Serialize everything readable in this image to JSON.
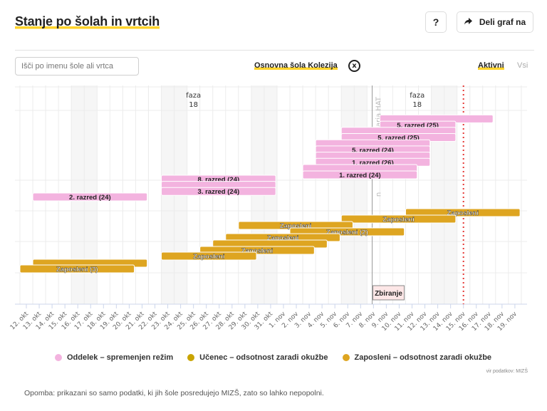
{
  "header": {
    "title": "Stanje po šolah in vrtcih",
    "help_label": "?",
    "share_label": "Deli graf na",
    "share_icon": "share-arrow-icon"
  },
  "filters": {
    "search_placeholder": "Išči po imenu šole ali vrtca",
    "selected_school": "Osnovna šola Kolezija",
    "clear_icon": "close-circle-icon",
    "clear_label": "x",
    "toggle_active": "Aktivni",
    "toggle_all": "Vsi"
  },
  "colors": {
    "oddelek": "#f3b3df",
    "ucenec": "#c9a400",
    "zaposleni": "#dea521",
    "accent": "#ffd32a",
    "today_line": "#e53935"
  },
  "chart_data": {
    "type": "gantt",
    "x_start": "12. okt",
    "x_labels": [
      "12. okt",
      "13. okt",
      "14. okt",
      "15. okt",
      "16. okt",
      "17. okt",
      "18. okt",
      "19. okt",
      "20. okt",
      "21. okt",
      "22. okt",
      "23. okt",
      "24. okt",
      "25. okt",
      "26. okt",
      "27. okt",
      "28. okt",
      "29. okt",
      "30. okt",
      "31. okt",
      "1. nov",
      "2. nov",
      "3. nov",
      "4. nov",
      "5. nov",
      "6. nov",
      "7. nov",
      "8. nov",
      "9. nov",
      "10. nov",
      "11. nov",
      "12. nov",
      "13. nov",
      "14. nov",
      "15. nov",
      "16. nov",
      "17. nov",
      "18. nov",
      "19. nov"
    ],
    "weekend_day_indices": [
      4,
      5,
      11,
      12,
      18,
      19,
      25,
      26,
      32,
      33
    ],
    "annotations": [
      {
        "type": "label",
        "text_line1": "faza",
        "text_line2": "18",
        "day": 13
      },
      {
        "type": "label",
        "text_line1": "faza",
        "text_line2": "18",
        "day": 30.4
      },
      {
        "type": "vline",
        "text": "aria HAT",
        "text_visible_fragment": "n",
        "day": 26.9,
        "style": "solid-gray"
      },
      {
        "type": "vline",
        "day": 34,
        "style": "dotted-red"
      },
      {
        "type": "flag",
        "text": "Zbiranje",
        "day": 26.9
      }
    ],
    "legend": [
      {
        "key": "oddelek",
        "label": "Oddelek – spremenjen režim"
      },
      {
        "key": "ucenec",
        "label": "Učenec – odsotnost zaradi okužbe"
      },
      {
        "key": "zaposleni",
        "label": "Zaposleni – odsotnost zaradi okužbe"
      }
    ],
    "bars": [
      {
        "cat": "oddelek",
        "start": 10.5,
        "end": 19.4,
        "row": 0,
        "label": "8. razred (24)"
      },
      {
        "cat": "oddelek",
        "start": 10.5,
        "end": 19.4,
        "row": 1,
        "label": ""
      },
      {
        "cat": "oddelek",
        "start": 10.5,
        "end": 19.4,
        "row": 2,
        "label": "3. razred (24)"
      },
      {
        "cat": "oddelek",
        "start": 0.5,
        "end": 9.4,
        "row": 3,
        "label": "2. razred (24)"
      },
      {
        "cat": "oddelek",
        "start": 27.5,
        "end": 36.3,
        "row": -8,
        "label": ""
      },
      {
        "cat": "oddelek",
        "start": 27.5,
        "end": 33.4,
        "row": -7,
        "label": "5. razred (25)"
      },
      {
        "cat": "oddelek",
        "start": 24.5,
        "end": 33.4,
        "row": -6,
        "label": ""
      },
      {
        "cat": "oddelek",
        "start": 24.5,
        "end": 33.4,
        "row": -5,
        "label": "5. razred (25)"
      },
      {
        "cat": "oddelek",
        "start": 22.5,
        "end": 31.4,
        "row": -4,
        "label": ""
      },
      {
        "cat": "oddelek",
        "start": 22.5,
        "end": 31.4,
        "row": -3,
        "label": "5. razred (24)"
      },
      {
        "cat": "oddelek",
        "start": 22.5,
        "end": 31.4,
        "row": -2,
        "label": ""
      },
      {
        "cat": "oddelek",
        "start": 22.5,
        "end": 31.4,
        "row": -1,
        "label": "1. razred (26)"
      },
      {
        "cat": "oddelek",
        "start": 21.5,
        "end": 30.4,
        "row": 0,
        "label": ""
      },
      {
        "cat": "oddelek",
        "start": 21.5,
        "end": 30.4,
        "row": 1,
        "label": "1. razred (24)"
      },
      {
        "cat": "zaposleni",
        "start": 29.5,
        "end": 38.4,
        "row": 10,
        "label": "Zaposleni"
      },
      {
        "cat": "zaposleni",
        "start": 24.5,
        "end": 33.4,
        "row": 11,
        "label": "Zaposleni"
      },
      {
        "cat": "zaposleni",
        "start": 16.5,
        "end": 25.4,
        "row": 12,
        "label": "Zaposleni"
      },
      {
        "cat": "zaposleni",
        "start": 20.5,
        "end": 29.4,
        "row": 13,
        "label": "Zaposleni (2)"
      },
      {
        "cat": "zaposleni",
        "start": 15.5,
        "end": 24.4,
        "row": 14,
        "label": "Zaposleni"
      },
      {
        "cat": "zaposleni",
        "start": 14.5,
        "end": 23.4,
        "row": 15,
        "label": ""
      },
      {
        "cat": "zaposleni",
        "start": 13.5,
        "end": 22.4,
        "row": 16,
        "label": "Zaposleni"
      },
      {
        "cat": "zaposleni",
        "start": 10.5,
        "end": 17.9,
        "row": 17,
        "label": "Zaposleni"
      },
      {
        "cat": "zaposleni",
        "start": 0.5,
        "end": 9.4,
        "row": 18,
        "label": ""
      },
      {
        "cat": "zaposleni",
        "start": -0.5,
        "end": 8.4,
        "row": 19,
        "label": "Zaposleni (3)"
      }
    ]
  },
  "footer": {
    "source": "vir podatkov: MIZŠ",
    "note": "Opomba: prikazani so samo podatki, ki jih šole posredujejo MIZŠ, zato so lahko nepopolni."
  }
}
